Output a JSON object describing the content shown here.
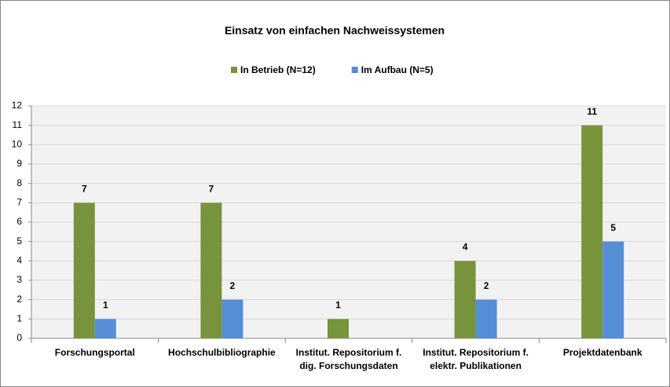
{
  "chart_data": {
    "type": "bar",
    "title": "Einsatz von einfachen Nachweissystemen",
    "categories": [
      "Forschungsportal",
      "Hochschulbibliographie",
      "Institut. Repositorium f.\ndig. Forschungsdaten",
      "Institut. Repositorium f.\nelektr. Publikationen",
      "Projektdatenbank"
    ],
    "series": [
      {
        "name": "In Betrieb (N=12)",
        "color": "#77933c",
        "values": [
          7,
          7,
          1,
          4,
          11
        ]
      },
      {
        "name": "Im Aufbau (N=5)",
        "color": "#558ed5",
        "values": [
          1,
          2,
          null,
          2,
          5
        ]
      }
    ],
    "ylim": [
      0,
      12
    ],
    "yticks": [
      0,
      1,
      2,
      3,
      4,
      5,
      6,
      7,
      8,
      9,
      10,
      11,
      12
    ],
    "grid": true,
    "legend": "top"
  }
}
